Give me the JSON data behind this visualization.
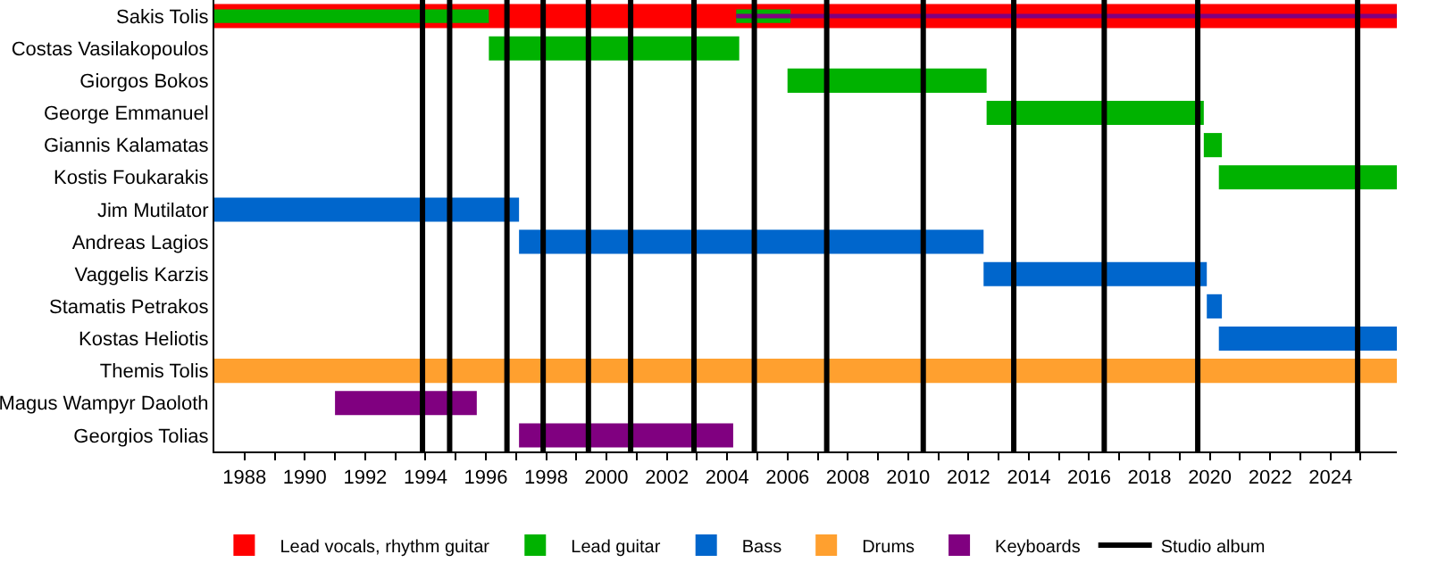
{
  "chart_data": {
    "type": "bar",
    "orientation": "horizontal",
    "legend": "bottom",
    "categories": [
      "Sakis Tolis",
      "Costas Vasilakopoulos",
      "Giorgos Bokos",
      "George Emmanuel",
      "Giannis Kalamatas",
      "Kostis Foukarakis",
      "Jim Mutilator",
      "Andreas Lagios",
      "Vaggelis Karzis",
      "Stamatis Petrakos",
      "Kostas Heliotis",
      "Themis Tolis",
      "Magus Wampyr Daoloth",
      "Georgios Tolias"
    ],
    "xlim": [
      1987,
      2026.2
    ],
    "xticks": [
      1988,
      {
        "value": 1989,
        "label": null
      },
      1990,
      {
        "value": 1991,
        "label": null
      },
      1992,
      {
        "value": 1993,
        "label": null
      },
      1994,
      {
        "value": 1995,
        "label": null
      },
      1996,
      {
        "value": 1997,
        "label": null
      },
      1998,
      {
        "value": 1999,
        "label": null
      },
      2000,
      {
        "value": 2001,
        "label": null
      },
      2002,
      {
        "value": 2003,
        "label": null
      },
      2004,
      {
        "value": 2005,
        "label": null
      },
      2006,
      {
        "value": 2007,
        "label": null
      },
      2008,
      {
        "value": 2009,
        "label": null
      },
      2010,
      {
        "value": 2011,
        "label": null
      },
      2012,
      {
        "value": 2013,
        "label": null
      },
      2014,
      {
        "value": 2015,
        "label": null
      },
      2016,
      {
        "value": 2017,
        "label": null
      },
      2018,
      {
        "value": 2019,
        "label": null
      },
      2020,
      {
        "value": 2021,
        "label": null
      },
      2022,
      {
        "value": 2023,
        "label": null
      },
      2024,
      {
        "value": 2025,
        "label": null
      }
    ],
    "series": [
      {
        "name": "Lead vocals, rhythm guitar",
        "color": "#ff0000",
        "base": [
          1987,
          null,
          null,
          null,
          null,
          null,
          null,
          null,
          null,
          null,
          null,
          null,
          null,
          null
        ],
        "values": [
          39.2,
          null,
          null,
          null,
          null,
          null,
          null,
          null,
          null,
          null,
          null,
          null,
          null,
          null
        ]
      },
      {
        "name": "Lead guitar",
        "color": "#00b200",
        "base": [
          1987,
          1996.1,
          2006.0,
          2012.6,
          2019.8,
          2020.3,
          null,
          null,
          null,
          null,
          null,
          null,
          null,
          null
        ],
        "values": [
          9.1,
          8.3,
          6.6,
          7.2,
          0.6,
          5.9,
          null,
          null,
          null,
          null,
          null,
          null,
          null,
          null
        ]
      },
      {
        "color": "#00b200",
        "base": [
          2004.3,
          null,
          null,
          null,
          null,
          null,
          null,
          null,
          null,
          null,
          null,
          null,
          null,
          null
        ],
        "values": [
          1.8,
          null,
          null,
          null,
          null,
          null,
          null,
          null,
          null,
          null,
          null,
          null,
          null,
          null
        ]
      },
      {
        "name": "Bass",
        "color": "#0066cc",
        "base": [
          null,
          null,
          null,
          null,
          null,
          null,
          1987,
          1997.1,
          2012.5,
          2019.9,
          2020.3,
          null,
          null,
          null
        ],
        "values": [
          null,
          null,
          null,
          null,
          null,
          null,
          10.1,
          15.4,
          7.4,
          0.5,
          5.9,
          null,
          null,
          null
        ]
      },
      {
        "name": "Drums",
        "color": "#ffa02f",
        "base": [
          null,
          null,
          null,
          null,
          null,
          null,
          null,
          null,
          null,
          null,
          null,
          1987,
          null,
          null
        ],
        "values": [
          null,
          null,
          null,
          null,
          null,
          null,
          null,
          null,
          null,
          null,
          null,
          39.2,
          null,
          null
        ]
      },
      {
        "name": "Keyboards",
        "color": "#800080",
        "base": [
          2004.3,
          null,
          null,
          null,
          null,
          null,
          null,
          null,
          null,
          null,
          null,
          null,
          1991.0,
          1997.1
        ],
        "values": [
          21.9,
          null,
          null,
          null,
          null,
          null,
          null,
          null,
          null,
          null,
          null,
          null,
          4.7,
          7.1
        ]
      }
    ],
    "ref_lines": [
      {
        "axis": "x",
        "value": 1993.9,
        "label": "Studio album",
        "color": "#000000"
      },
      {
        "axis": "x",
        "value": 1994.8,
        "color": "#000000"
      },
      {
        "axis": "x",
        "value": 1996.7,
        "color": "#000000"
      },
      {
        "axis": "x",
        "value": 1997.9,
        "color": "#000000"
      },
      {
        "axis": "x",
        "value": 1999.4,
        "color": "#000000"
      },
      {
        "axis": "x",
        "value": 2000.8,
        "color": "#000000"
      },
      {
        "axis": "x",
        "value": 2002.9,
        "color": "#000000"
      },
      {
        "axis": "x",
        "value": 2004.9,
        "color": "#000000"
      },
      {
        "axis": "x",
        "value": 2007.3,
        "color": "#000000"
      },
      {
        "axis": "x",
        "value": 2010.5,
        "color": "#000000"
      },
      {
        "axis": "x",
        "value": 2013.5,
        "color": "#000000"
      },
      {
        "axis": "x",
        "value": 2016.5,
        "color": "#000000"
      },
      {
        "axis": "x",
        "value": 2019.6,
        "color": "#000000"
      },
      {
        "axis": "x",
        "value": 2024.9,
        "color": "#000000"
      }
    ]
  }
}
